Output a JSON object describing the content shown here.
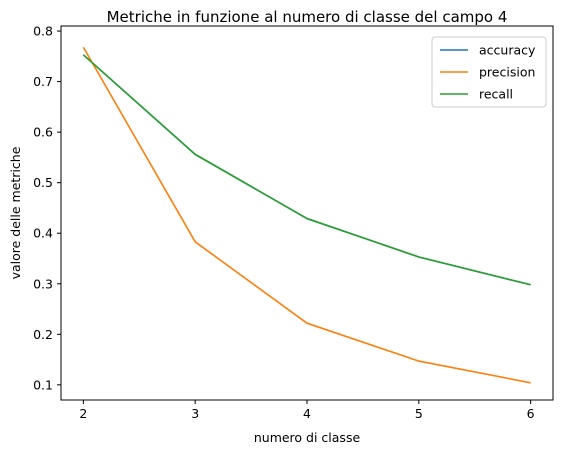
{
  "chart_data": {
    "type": "line",
    "title": "Metriche in funzione al numero di classe del campo 4",
    "xlabel": "numero di classe",
    "ylabel": "valore delle metriche",
    "x": [
      2,
      3,
      4,
      5,
      6
    ],
    "xlim": [
      1.8,
      6.2
    ],
    "ylim": [
      0.07,
      0.81
    ],
    "xticks": [
      2,
      3,
      4,
      5,
      6
    ],
    "yticks": [
      0.1,
      0.2,
      0.3,
      0.4,
      0.5,
      0.6,
      0.7,
      0.8
    ],
    "ytick_labels": [
      "0.1",
      "0.2",
      "0.3",
      "0.4",
      "0.5",
      "0.6",
      "0.7",
      "0.8"
    ],
    "grid": false,
    "legend_position": "top-right",
    "series": [
      {
        "name": "accuracy",
        "color": "#1f77b4",
        "values": [
          0.753,
          0.556,
          0.429,
          0.353,
          0.298
        ]
      },
      {
        "name": "precision",
        "color": "#ff7f0e",
        "values": [
          0.768,
          0.383,
          0.222,
          0.147,
          0.104
        ]
      },
      {
        "name": "recall",
        "color": "#2ca02c",
        "values": [
          0.753,
          0.556,
          0.429,
          0.353,
          0.298
        ]
      }
    ]
  }
}
